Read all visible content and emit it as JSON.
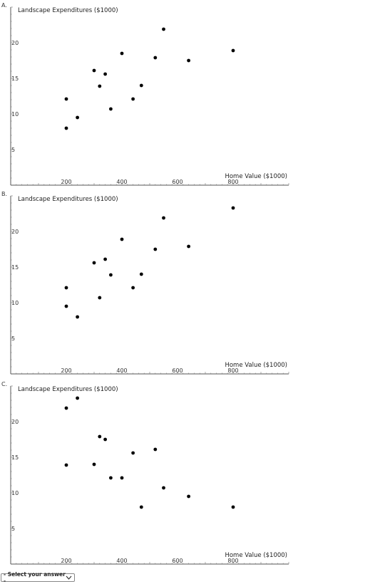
{
  "answer": {
    "label": "- Select your answer -",
    "icon": "chevron-down-icon"
  },
  "chart_data": [
    {
      "panel": "A.",
      "type": "scatter",
      "ylabel": "Landscape Expenditures ($1000)",
      "xlabel": "Home Value ($1000)",
      "x_ticks": [
        200,
        400,
        600,
        800
      ],
      "y_ticks": [
        5,
        10,
        15,
        20
      ],
      "xlim": [
        0,
        1000
      ],
      "ylim": [
        0,
        25
      ],
      "points": [
        {
          "x": 200,
          "y": 12.1
        },
        {
          "x": 200,
          "y": 8.0
        },
        {
          "x": 240,
          "y": 9.5
        },
        {
          "x": 300,
          "y": 16.1
        },
        {
          "x": 320,
          "y": 13.9
        },
        {
          "x": 340,
          "y": 15.6
        },
        {
          "x": 360,
          "y": 10.7
        },
        {
          "x": 400,
          "y": 18.5
        },
        {
          "x": 440,
          "y": 12.1
        },
        {
          "x": 470,
          "y": 14.0
        },
        {
          "x": 520,
          "y": 17.9
        },
        {
          "x": 550,
          "y": 21.9
        },
        {
          "x": 640,
          "y": 17.5
        },
        {
          "x": 800,
          "y": 18.9
        }
      ]
    },
    {
      "panel": "B.",
      "type": "scatter",
      "ylabel": "Landscape Expenditures ($1000)",
      "xlabel": "Home Value ($1000)",
      "x_ticks": [
        200,
        400,
        600,
        800
      ],
      "y_ticks": [
        5,
        10,
        15,
        20
      ],
      "xlim": [
        0,
        1000
      ],
      "ylim": [
        0,
        25
      ],
      "points": [
        {
          "x": 200,
          "y": 12.1
        },
        {
          "x": 200,
          "y": 9.5
        },
        {
          "x": 240,
          "y": 8.0
        },
        {
          "x": 300,
          "y": 15.6
        },
        {
          "x": 320,
          "y": 10.7
        },
        {
          "x": 340,
          "y": 16.1
        },
        {
          "x": 360,
          "y": 13.9
        },
        {
          "x": 400,
          "y": 18.9
        },
        {
          "x": 440,
          "y": 12.1
        },
        {
          "x": 470,
          "y": 14.0
        },
        {
          "x": 520,
          "y": 17.5
        },
        {
          "x": 550,
          "y": 21.9
        },
        {
          "x": 640,
          "y": 17.9
        },
        {
          "x": 800,
          "y": 23.3
        }
      ]
    },
    {
      "panel": "C.",
      "type": "scatter",
      "ylabel": "Landscape Expenditures ($1000)",
      "xlabel": "Home Value ($1000)",
      "x_ticks": [
        200,
        400,
        600,
        800
      ],
      "y_ticks": [
        5,
        10,
        15,
        20
      ],
      "xlim": [
        0,
        1000
      ],
      "ylim": [
        0,
        25
      ],
      "points": [
        {
          "x": 200,
          "y": 21.9
        },
        {
          "x": 200,
          "y": 13.9
        },
        {
          "x": 240,
          "y": 23.3
        },
        {
          "x": 300,
          "y": 14.0
        },
        {
          "x": 320,
          "y": 17.9
        },
        {
          "x": 340,
          "y": 17.5
        },
        {
          "x": 360,
          "y": 12.1
        },
        {
          "x": 400,
          "y": 12.1
        },
        {
          "x": 440,
          "y": 15.6
        },
        {
          "x": 470,
          "y": 8.0
        },
        {
          "x": 520,
          "y": 16.1
        },
        {
          "x": 550,
          "y": 10.7
        },
        {
          "x": 640,
          "y": 9.5
        },
        {
          "x": 800,
          "y": 8.0
        }
      ]
    }
  ]
}
